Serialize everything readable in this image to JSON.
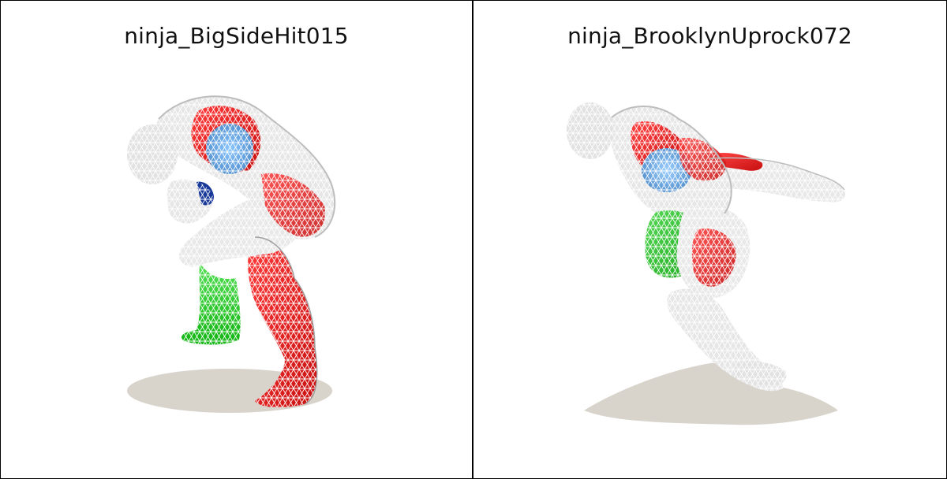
{
  "panels": [
    {
      "title": "ninja_BigSideHit015"
    },
    {
      "title": "ninja_BrooklynUprock072"
    }
  ],
  "colors": {
    "background": "#ffffff",
    "border": "#000000",
    "mesh_wire": "#ffffff",
    "mesh_fill": "#d9d9d9",
    "red_region": "#e51a1a",
    "green_region": "#22cc22",
    "blue_region": "#5f9fd6",
    "shadow": "#d8d4cc"
  }
}
